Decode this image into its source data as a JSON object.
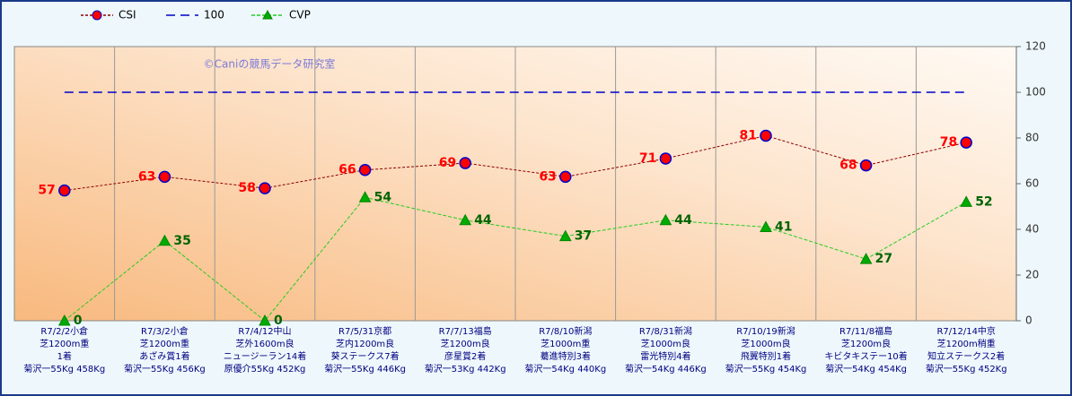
{
  "chart_data": {
    "type": "line",
    "annotation": "©Caniの競馬データ研究室",
    "categories": [
      [
        "R7/2/2小倉",
        "芝1200m重",
        "1着",
        "菊沢一55Kg 458Kg"
      ],
      [
        "R7/3/2小倉",
        "芝1200m重",
        "あざみ賞1着",
        "菊沢一55Kg 456Kg"
      ],
      [
        "R7/4/12中山",
        "芝外1600m良",
        "ニュージーラン14着",
        "原優介55Kg 452Kg"
      ],
      [
        "R7/5/31京都",
        "芝内1200m良",
        "葵ステークス7着",
        "菊沢一55Kg 446Kg"
      ],
      [
        "R7/7/13福島",
        "芝1200m良",
        "彦星賞2着",
        "菊沢一53Kg 442Kg"
      ],
      [
        "R7/8/10新潟",
        "芝1000m重",
        "驀進特別3着",
        "菊沢一54Kg 440Kg"
      ],
      [
        "R7/8/31新潟",
        "芝1000m良",
        "雷光特別4着",
        "菊沢一54Kg 446Kg"
      ],
      [
        "R7/10/19新潟",
        "芝1000m良",
        "飛翼特別1着",
        "菊沢一55Kg 454Kg"
      ],
      [
        "R7/11/8福島",
        "芝1200m良",
        "キビタキステー10着",
        "菊沢一54Kg 454Kg"
      ],
      [
        "R7/12/14中京",
        "芝1200m稍重",
        "知立ステークス2着",
        "菊沢一55Kg 452Kg"
      ]
    ],
    "series": [
      {
        "name": "CSI",
        "color": "#8b0000",
        "marker": "circle",
        "marker_color": "#ff0000",
        "marker_edge": "#0000cc",
        "label_color": "#ff0000",
        "label_side": "left",
        "dash": "3,2",
        "values": [
          57,
          63,
          58,
          66,
          69,
          63,
          71,
          81,
          68,
          78
        ]
      },
      {
        "name": "100",
        "color": "#0000cc",
        "marker": "none",
        "dash": "10,6",
        "values": [
          100,
          100,
          100,
          100,
          100,
          100,
          100,
          100,
          100,
          100
        ]
      },
      {
        "name": "CVP",
        "color": "#22cc22",
        "marker": "triangle",
        "marker_color": "#00aa00",
        "marker_edge": "#008800",
        "label_color": "#006400",
        "label_side": "right",
        "dash": "4,2",
        "values": [
          0,
          35,
          0,
          54,
          44,
          37,
          44,
          41,
          27,
          52
        ]
      }
    ],
    "ylim": [
      0,
      120
    ],
    "yticks": [
      0,
      20,
      40,
      60,
      80,
      100,
      120
    ],
    "y_axis_side": "right",
    "vertical_grid": true
  }
}
